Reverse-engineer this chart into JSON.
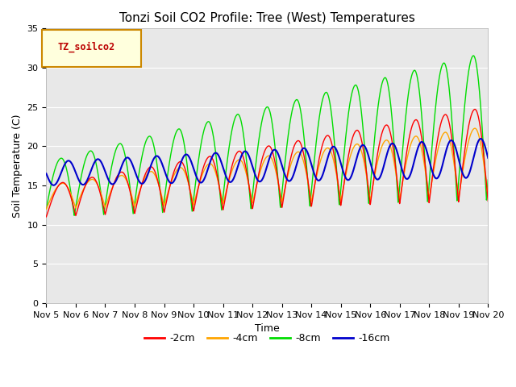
{
  "title": "Tonzi Soil CO2 Profile: Tree (West) Temperatures",
  "xlabel": "Time",
  "ylabel": "Soil Temperature (C)",
  "ylim": [
    0,
    35
  ],
  "xlim": [
    0,
    15
  ],
  "xtick_labels": [
    "Nov 5",
    "Nov 6",
    "Nov 7",
    "Nov 8",
    "Nov 9",
    "Nov 10",
    "Nov 11",
    "Nov 12",
    "Nov 13",
    "Nov 14",
    "Nov 15",
    "Nov 16",
    "Nov 17",
    "Nov 18",
    "Nov 19",
    "Nov 20"
  ],
  "ytick_values": [
    0,
    5,
    10,
    15,
    20,
    25,
    30,
    35
  ],
  "legend_label": "TZ_soilco2",
  "series_labels": [
    "-2cm",
    "-4cm",
    "-8cm",
    "-16cm"
  ],
  "series_colors": [
    "#ff0000",
    "#ffa500",
    "#00dd00",
    "#0000cc"
  ],
  "title_fontsize": 11,
  "axis_fontsize": 9,
  "tick_fontsize": 8
}
